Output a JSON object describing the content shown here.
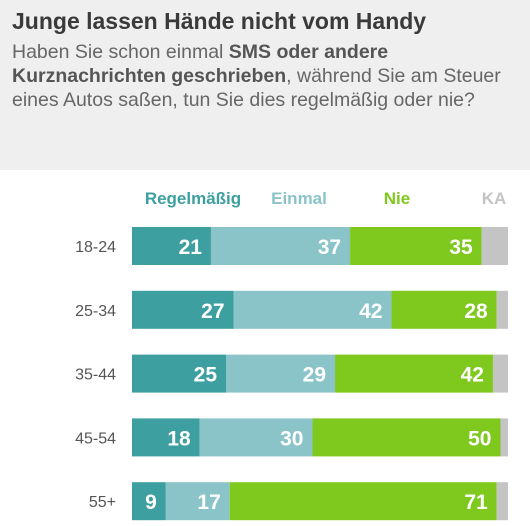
{
  "title": "Junge lassen Hände nicht vom Handy",
  "subtitle": {
    "part1": "Haben Sie schon einmal ",
    "bold": "SMS oder andere Kurznachrichten geschrieben",
    "part2": ", während Sie am Steuer eines Autos saßen, tun Sie dies regelmäßig oder nie?"
  },
  "colors": {
    "header_bg": "#efefef",
    "regelmaessig": "#3d9fa0",
    "einmal": "#8bc4c8",
    "nie": "#7fc81e",
    "ka": "#c4c4c4"
  },
  "chart_data": {
    "type": "bar",
    "orientation": "horizontal",
    "stacked": true,
    "categories": [
      "18-24",
      "25-34",
      "35-44",
      "45-54",
      "55+"
    ],
    "series": [
      {
        "name": "Regelmäßig",
        "values": [
          21,
          27,
          25,
          18,
          9
        ],
        "color": "#3d9fa0"
      },
      {
        "name": "Einmal",
        "values": [
          37,
          42,
          29,
          30,
          17
        ],
        "color": "#8bc4c8"
      },
      {
        "name": "Nie",
        "values": [
          35,
          28,
          42,
          50,
          71
        ],
        "color": "#7fc81e"
      },
      {
        "name": "KA",
        "values": [
          7,
          3,
          4,
          2,
          3
        ],
        "color": "#c4c4c4"
      }
    ],
    "labelled_series": [
      "Regelmäßig",
      "Einmal",
      "Nie"
    ],
    "xlim": [
      0,
      100
    ],
    "legend_position": "top",
    "grid": false
  }
}
